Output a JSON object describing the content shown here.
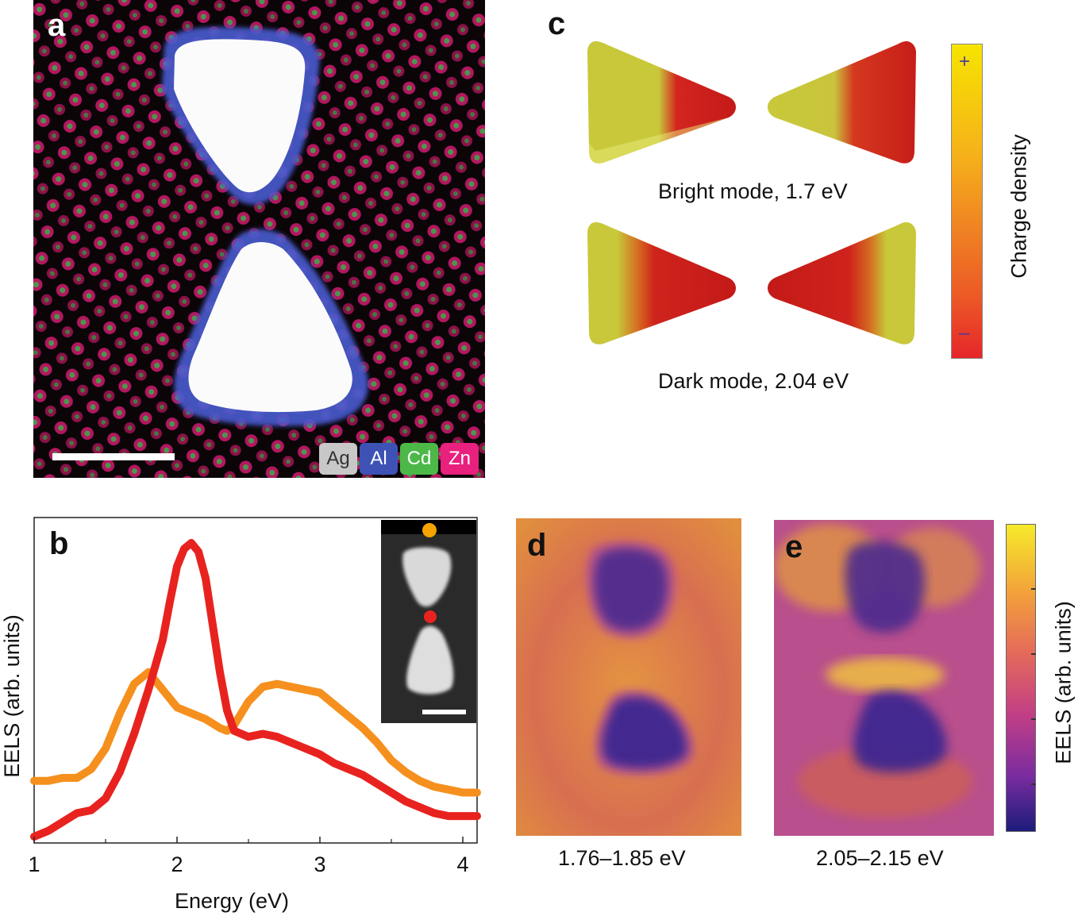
{
  "panels": {
    "a": {
      "letter": "a",
      "legend": [
        {
          "label": "Ag",
          "color": "#c8c8c8",
          "text_color": "#333333"
        },
        {
          "label": "Al",
          "color": "#3d52b4",
          "text_color": "#ffffff"
        },
        {
          "label": "Cd",
          "color": "#4cb848",
          "text_color": "#ffffff"
        },
        {
          "label": "Zn",
          "color": "#e8207e",
          "text_color": "#ffffff"
        }
      ]
    },
    "b": {
      "letter": "b",
      "ylabel": "EELS (arb. units)",
      "xlabel": "Energy (eV)"
    },
    "c": {
      "letter": "c",
      "bright_caption": "Bright mode, 1.7 eV",
      "dark_caption": "Dark mode, 2.04 eV",
      "colorbar_label": "Charge density",
      "colorbar_plus": "+",
      "colorbar_minus": "–"
    },
    "d": {
      "letter": "d",
      "caption": "1.76–1.85 eV"
    },
    "e": {
      "letter": "e",
      "caption": "2.05–2.15 eV"
    },
    "colorbar_right": {
      "label": "EELS (arb. units)"
    }
  },
  "chart_data": {
    "type": "line",
    "xlabel": "Energy (eV)",
    "ylabel": "EELS (arb. units)",
    "xlim": [
      1,
      4.1
    ],
    "ylim": [
      0,
      1
    ],
    "xticks": [
      1,
      2,
      3,
      4
    ],
    "series": [
      {
        "color": "#f5901e",
        "x": [
          1.0,
          1.1,
          1.2,
          1.3,
          1.4,
          1.5,
          1.6,
          1.7,
          1.8,
          1.85,
          1.9,
          2.0,
          2.1,
          2.2,
          2.3,
          2.35,
          2.4,
          2.5,
          2.6,
          2.7,
          2.8,
          2.9,
          3.0,
          3.1,
          3.2,
          3.3,
          3.4,
          3.5,
          3.6,
          3.7,
          3.8,
          3.9,
          4.0,
          4.1
        ],
        "y": [
          0.19,
          0.19,
          0.2,
          0.2,
          0.23,
          0.3,
          0.42,
          0.52,
          0.56,
          0.53,
          0.5,
          0.44,
          0.42,
          0.4,
          0.37,
          0.36,
          0.38,
          0.46,
          0.51,
          0.52,
          0.51,
          0.5,
          0.49,
          0.45,
          0.41,
          0.37,
          0.32,
          0.26,
          0.22,
          0.19,
          0.17,
          0.16,
          0.15,
          0.15
        ]
      },
      {
        "color": "#e8231f",
        "x": [
          1.0,
          1.1,
          1.2,
          1.3,
          1.4,
          1.5,
          1.6,
          1.7,
          1.8,
          1.9,
          1.95,
          2.0,
          2.05,
          2.1,
          2.15,
          2.2,
          2.25,
          2.3,
          2.35,
          2.4,
          2.5,
          2.6,
          2.7,
          2.8,
          2.9,
          3.0,
          3.1,
          3.2,
          3.3,
          3.4,
          3.5,
          3.6,
          3.7,
          3.8,
          3.9,
          4.0,
          4.1
        ],
        "y": [
          0.0,
          0.02,
          0.05,
          0.08,
          0.09,
          0.13,
          0.22,
          0.35,
          0.5,
          0.67,
          0.8,
          0.92,
          0.98,
          1.0,
          0.97,
          0.88,
          0.72,
          0.56,
          0.43,
          0.36,
          0.34,
          0.35,
          0.34,
          0.32,
          0.3,
          0.28,
          0.25,
          0.23,
          0.21,
          0.18,
          0.15,
          0.12,
          0.1,
          0.08,
          0.07,
          0.07,
          0.07
        ]
      }
    ]
  }
}
